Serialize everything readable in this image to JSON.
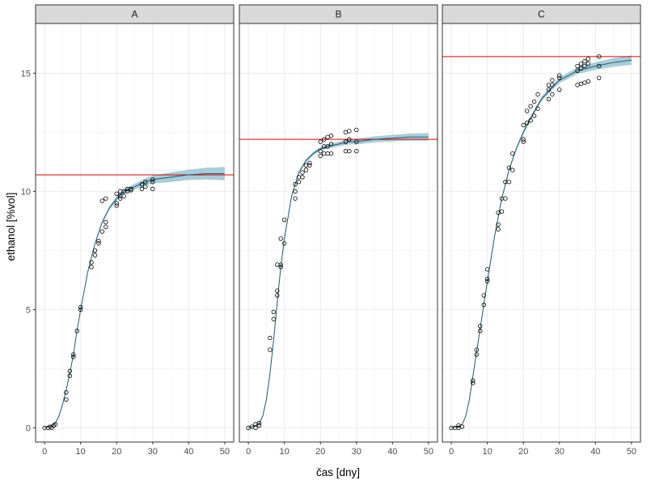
{
  "chart_data": {
    "type": "scatter",
    "xlabel": "čas [dny]",
    "ylabel": "ethanol [%vol]",
    "xlim": [
      -2.5,
      52.5
    ],
    "ylim": [
      -0.6,
      17.1
    ],
    "x_ticks": [
      0,
      10,
      20,
      30,
      40,
      50
    ],
    "x_tick_labels": [
      "0",
      "10",
      "20",
      "30",
      "40",
      "50"
    ],
    "y_ticks": [
      0,
      5,
      10,
      15
    ],
    "y_tick_labels": [
      "0",
      "5",
      "10",
      "15"
    ],
    "grid": true,
    "colors": {
      "strip_fill": "#d9d9d9",
      "grid": "#ebebeb",
      "fit_line": "#1f5a70",
      "ribbon": "#a8cdd8",
      "asymptote": "#dd0000",
      "points": "#000000"
    },
    "panels": [
      {
        "label": "A",
        "asymptote": 10.7,
        "fit": {
          "x": [
            0,
            2,
            3,
            4,
            5,
            6,
            7,
            8,
            9,
            10,
            12,
            14,
            16,
            18,
            20,
            22,
            25,
            28,
            30,
            35,
            40,
            45,
            50
          ],
          "y": [
            0.0,
            0.1,
            0.2,
            0.5,
            1.0,
            1.6,
            2.3,
            3.1,
            4.1,
            5.0,
            6.6,
            7.8,
            8.7,
            9.3,
            9.7,
            10.0,
            10.2,
            10.4,
            10.5,
            10.6,
            10.7,
            10.75,
            10.75
          ],
          "band": [
            0.0,
            0.02,
            0.03,
            0.04,
            0.05,
            0.05,
            0.05,
            0.05,
            0.05,
            0.05,
            0.05,
            0.05,
            0.06,
            0.07,
            0.08,
            0.1,
            0.12,
            0.15,
            0.17,
            0.2,
            0.22,
            0.25,
            0.28
          ]
        },
        "points": [
          {
            "x": 0,
            "y": 0.0
          },
          {
            "x": 1,
            "y": 0.0
          },
          {
            "x": 1.5,
            "y": 0.05
          },
          {
            "x": 2,
            "y": 0.0
          },
          {
            "x": 2.5,
            "y": 0.1
          },
          {
            "x": 3,
            "y": 0.15
          },
          {
            "x": 6,
            "y": 1.2
          },
          {
            "x": 6,
            "y": 1.5
          },
          {
            "x": 7,
            "y": 2.2
          },
          {
            "x": 7,
            "y": 2.4
          },
          {
            "x": 8,
            "y": 3.0
          },
          {
            "x": 8,
            "y": 3.1
          },
          {
            "x": 9,
            "y": 4.1
          },
          {
            "x": 10,
            "y": 5.0
          },
          {
            "x": 10,
            "y": 5.1
          },
          {
            "x": 13,
            "y": 6.8
          },
          {
            "x": 13,
            "y": 7.0
          },
          {
            "x": 14,
            "y": 7.3
          },
          {
            "x": 14,
            "y": 7.5
          },
          {
            "x": 15,
            "y": 7.8
          },
          {
            "x": 15,
            "y": 7.9
          },
          {
            "x": 16,
            "y": 8.3
          },
          {
            "x": 16,
            "y": 9.6
          },
          {
            "x": 17,
            "y": 8.5
          },
          {
            "x": 17,
            "y": 8.7
          },
          {
            "x": 17,
            "y": 9.7
          },
          {
            "x": 20,
            "y": 9.4
          },
          {
            "x": 20,
            "y": 9.5
          },
          {
            "x": 20,
            "y": 9.9
          },
          {
            "x": 21,
            "y": 9.7
          },
          {
            "x": 21,
            "y": 9.8
          },
          {
            "x": 21,
            "y": 10.0
          },
          {
            "x": 22,
            "y": 9.8
          },
          {
            "x": 22,
            "y": 10.0
          },
          {
            "x": 23,
            "y": 10.0
          },
          {
            "x": 23,
            "y": 10.1
          },
          {
            "x": 24,
            "y": 10.05
          },
          {
            "x": 24,
            "y": 10.1
          },
          {
            "x": 27,
            "y": 10.1
          },
          {
            "x": 27,
            "y": 10.3
          },
          {
            "x": 28,
            "y": 10.2
          },
          {
            "x": 28,
            "y": 10.4
          },
          {
            "x": 30,
            "y": 10.1
          },
          {
            "x": 30,
            "y": 10.4
          },
          {
            "x": 30,
            "y": 10.5
          }
        ]
      },
      {
        "label": "B",
        "asymptote": 12.2,
        "fit": {
          "x": [
            0,
            2,
            3,
            4,
            5,
            6,
            7,
            8,
            9,
            10,
            12,
            14,
            16,
            18,
            20,
            22,
            25,
            28,
            30,
            35,
            40,
            45,
            50
          ],
          "y": [
            0.0,
            0.1,
            0.2,
            0.5,
            1.2,
            2.3,
            3.7,
            5.3,
            6.8,
            8.0,
            9.8,
            10.8,
            11.3,
            11.6,
            11.8,
            11.9,
            12.0,
            12.1,
            12.1,
            12.2,
            12.25,
            12.3,
            12.3
          ],
          "band": [
            0.0,
            0.02,
            0.03,
            0.04,
            0.05,
            0.05,
            0.05,
            0.05,
            0.05,
            0.05,
            0.05,
            0.05,
            0.06,
            0.07,
            0.08,
            0.09,
            0.1,
            0.11,
            0.12,
            0.13,
            0.14,
            0.15,
            0.16
          ]
        },
        "points": [
          {
            "x": 0,
            "y": 0.0
          },
          {
            "x": 1,
            "y": 0.05
          },
          {
            "x": 2,
            "y": 0.0
          },
          {
            "x": 2,
            "y": 0.15
          },
          {
            "x": 3,
            "y": 0.1
          },
          {
            "x": 3,
            "y": 0.2
          },
          {
            "x": 6,
            "y": 3.3
          },
          {
            "x": 6,
            "y": 3.8
          },
          {
            "x": 7,
            "y": 4.6
          },
          {
            "x": 7,
            "y": 4.9
          },
          {
            "x": 8,
            "y": 5.6
          },
          {
            "x": 8,
            "y": 5.8
          },
          {
            "x": 8,
            "y": 6.9
          },
          {
            "x": 9,
            "y": 6.8
          },
          {
            "x": 9,
            "y": 6.9
          },
          {
            "x": 9,
            "y": 8.0
          },
          {
            "x": 10,
            "y": 7.8
          },
          {
            "x": 10,
            "y": 8.8
          },
          {
            "x": 13,
            "y": 9.7
          },
          {
            "x": 13,
            "y": 10.0
          },
          {
            "x": 13,
            "y": 10.3
          },
          {
            "x": 14,
            "y": 10.4
          },
          {
            "x": 14,
            "y": 10.6
          },
          {
            "x": 15,
            "y": 10.6
          },
          {
            "x": 15,
            "y": 10.8
          },
          {
            "x": 16,
            "y": 10.9
          },
          {
            "x": 16,
            "y": 11.1
          },
          {
            "x": 17,
            "y": 11.1
          },
          {
            "x": 17,
            "y": 11.2
          },
          {
            "x": 20,
            "y": 11.5
          },
          {
            "x": 20,
            "y": 11.7
          },
          {
            "x": 20,
            "y": 12.1
          },
          {
            "x": 21,
            "y": 11.6
          },
          {
            "x": 21,
            "y": 11.9
          },
          {
            "x": 21,
            "y": 12.2
          },
          {
            "x": 22,
            "y": 11.6
          },
          {
            "x": 22,
            "y": 11.9
          },
          {
            "x": 22,
            "y": 12.3
          },
          {
            "x": 23,
            "y": 11.6
          },
          {
            "x": 23,
            "y": 12.0
          },
          {
            "x": 23,
            "y": 12.35
          },
          {
            "x": 27,
            "y": 11.7
          },
          {
            "x": 27,
            "y": 12.1
          },
          {
            "x": 27,
            "y": 12.5
          },
          {
            "x": 28,
            "y": 11.7
          },
          {
            "x": 28,
            "y": 12.2
          },
          {
            "x": 28,
            "y": 12.55
          },
          {
            "x": 30,
            "y": 11.7
          },
          {
            "x": 30,
            "y": 12.1
          },
          {
            "x": 30,
            "y": 12.6
          }
        ]
      },
      {
        "label": "C",
        "asymptote": 15.7,
        "fit": {
          "x": [
            0,
            2,
            3,
            4,
            5,
            6,
            7,
            8,
            9,
            10,
            12,
            14,
            16,
            18,
            20,
            22,
            25,
            28,
            30,
            35,
            40,
            45,
            50
          ],
          "y": [
            0.0,
            0.05,
            0.15,
            0.5,
            1.2,
            2.2,
            3.2,
            4.2,
            5.2,
            6.2,
            8.1,
            9.7,
            10.9,
            11.8,
            12.5,
            13.1,
            13.9,
            14.4,
            14.7,
            15.1,
            15.3,
            15.45,
            15.55
          ],
          "band": [
            0.0,
            0.02,
            0.03,
            0.04,
            0.05,
            0.05,
            0.05,
            0.05,
            0.05,
            0.05,
            0.05,
            0.05,
            0.06,
            0.07,
            0.08,
            0.09,
            0.1,
            0.11,
            0.12,
            0.14,
            0.16,
            0.18,
            0.2
          ]
        },
        "points": [
          {
            "x": 0,
            "y": 0.0
          },
          {
            "x": 1,
            "y": 0.0
          },
          {
            "x": 2,
            "y": 0.0
          },
          {
            "x": 2,
            "y": 0.1
          },
          {
            "x": 3,
            "y": 0.05
          },
          {
            "x": 6,
            "y": 1.9
          },
          {
            "x": 6,
            "y": 2.0
          },
          {
            "x": 7,
            "y": 3.1
          },
          {
            "x": 7,
            "y": 3.3
          },
          {
            "x": 8,
            "y": 4.1
          },
          {
            "x": 8,
            "y": 4.3
          },
          {
            "x": 9,
            "y": 5.2
          },
          {
            "x": 9,
            "y": 5.6
          },
          {
            "x": 10,
            "y": 6.2
          },
          {
            "x": 10,
            "y": 6.3
          },
          {
            "x": 10,
            "y": 6.7
          },
          {
            "x": 13,
            "y": 8.4
          },
          {
            "x": 13,
            "y": 8.6
          },
          {
            "x": 13,
            "y": 9.1
          },
          {
            "x": 14,
            "y": 9.15
          },
          {
            "x": 14,
            "y": 9.7
          },
          {
            "x": 15,
            "y": 9.7
          },
          {
            "x": 15,
            "y": 10.4
          },
          {
            "x": 16,
            "y": 10.4
          },
          {
            "x": 16,
            "y": 11.0
          },
          {
            "x": 17,
            "y": 10.9
          },
          {
            "x": 17,
            "y": 11.6
          },
          {
            "x": 20,
            "y": 12.1
          },
          {
            "x": 20,
            "y": 12.2
          },
          {
            "x": 20,
            "y": 12.8
          },
          {
            "x": 21,
            "y": 12.9
          },
          {
            "x": 21,
            "y": 13.4
          },
          {
            "x": 22,
            "y": 13.0
          },
          {
            "x": 22,
            "y": 13.6
          },
          {
            "x": 23,
            "y": 13.2
          },
          {
            "x": 23,
            "y": 13.8
          },
          {
            "x": 24,
            "y": 13.5
          },
          {
            "x": 24,
            "y": 14.1
          },
          {
            "x": 27,
            "y": 13.9
          },
          {
            "x": 27,
            "y": 14.3
          },
          {
            "x": 27,
            "y": 14.5
          },
          {
            "x": 28,
            "y": 14.1
          },
          {
            "x": 28,
            "y": 14.5
          },
          {
            "x": 28,
            "y": 14.7
          },
          {
            "x": 30,
            "y": 14.3
          },
          {
            "x": 30,
            "y": 14.8
          },
          {
            "x": 30,
            "y": 14.9
          },
          {
            "x": 35,
            "y": 14.5
          },
          {
            "x": 35,
            "y": 15.1
          },
          {
            "x": 35,
            "y": 15.3
          },
          {
            "x": 36,
            "y": 14.55
          },
          {
            "x": 36,
            "y": 15.2
          },
          {
            "x": 36,
            "y": 15.4
          },
          {
            "x": 37,
            "y": 14.6
          },
          {
            "x": 37,
            "y": 15.3
          },
          {
            "x": 37,
            "y": 15.5
          },
          {
            "x": 38,
            "y": 14.65
          },
          {
            "x": 38,
            "y": 15.4
          },
          {
            "x": 38,
            "y": 15.6
          },
          {
            "x": 41,
            "y": 14.8
          },
          {
            "x": 41,
            "y": 15.3
          },
          {
            "x": 41,
            "y": 15.7
          }
        ]
      }
    ]
  }
}
